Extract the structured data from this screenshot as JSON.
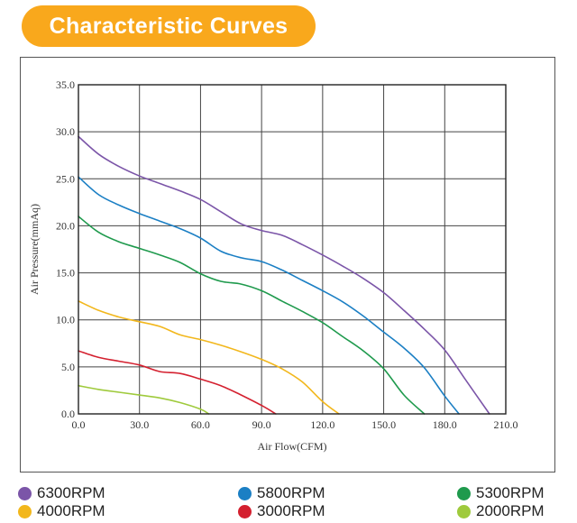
{
  "header": {
    "title": "Characteristic Curves"
  },
  "chart_data": {
    "type": "line",
    "title": "Characteristic Curves",
    "xlabel": "Air Flow(CFM)",
    "ylabel": "Air Pressure(mmAq)",
    "xlim": [
      0,
      210
    ],
    "ylim": [
      0,
      35
    ],
    "xticks": [
      0,
      30,
      60,
      90,
      120,
      150,
      180,
      210
    ],
    "yticks": [
      0,
      5,
      10,
      15,
      20,
      25,
      30,
      35
    ],
    "xtick_labels": [
      "0.0",
      "30.0",
      "60.0",
      "90.0",
      "120.0",
      "150.0",
      "180.0",
      "210.0"
    ],
    "ytick_labels": [
      "0.0",
      "5.0",
      "10.0",
      "15.0",
      "20.0",
      "25.0",
      "30.0",
      "35.0"
    ],
    "grid": true,
    "series": [
      {
        "name": "6300RPM",
        "color": "#7b55a8",
        "x": [
          0,
          10,
          20,
          30,
          40,
          50,
          60,
          70,
          80,
          90,
          100,
          110,
          120,
          130,
          140,
          150,
          160,
          170,
          180,
          190,
          202
        ],
        "y": [
          29.5,
          27.6,
          26.3,
          25.3,
          24.5,
          23.7,
          22.8,
          21.5,
          20.2,
          19.5,
          19.0,
          18.0,
          16.9,
          15.7,
          14.4,
          12.9,
          11.0,
          9.0,
          6.8,
          3.7,
          0
        ]
      },
      {
        "name": "5800RPM",
        "color": "#1b7fc4",
        "x": [
          0,
          10,
          20,
          30,
          40,
          50,
          60,
          70,
          80,
          90,
          100,
          110,
          120,
          130,
          140,
          150,
          160,
          170,
          180,
          187
        ],
        "y": [
          25.2,
          23.3,
          22.2,
          21.3,
          20.5,
          19.7,
          18.7,
          17.3,
          16.6,
          16.2,
          15.3,
          14.2,
          13.1,
          11.9,
          10.4,
          8.7,
          7.0,
          4.9,
          1.9,
          0
        ]
      },
      {
        "name": "5300RPM",
        "color": "#1f9a4d",
        "x": [
          0,
          10,
          20,
          30,
          40,
          50,
          60,
          70,
          80,
          90,
          100,
          110,
          120,
          130,
          140,
          150,
          160,
          170
        ],
        "y": [
          21.0,
          19.3,
          18.3,
          17.6,
          16.9,
          16.1,
          14.9,
          14.1,
          13.8,
          13.1,
          12.0,
          10.9,
          9.7,
          8.2,
          6.7,
          4.8,
          2.0,
          0
        ]
      },
      {
        "name": "4000RPM",
        "color": "#f2b71c",
        "x": [
          0,
          10,
          20,
          30,
          40,
          50,
          60,
          70,
          80,
          90,
          100,
          110,
          120,
          128
        ],
        "y": [
          12.0,
          11.0,
          10.3,
          9.8,
          9.3,
          8.4,
          7.9,
          7.3,
          6.6,
          5.8,
          4.8,
          3.4,
          1.3,
          0
        ]
      },
      {
        "name": "3000RPM",
        "color": "#d4202f",
        "x": [
          0,
          10,
          20,
          30,
          40,
          50,
          60,
          70,
          80,
          90,
          97
        ],
        "y": [
          6.7,
          6.0,
          5.6,
          5.2,
          4.5,
          4.3,
          3.7,
          3.0,
          2.0,
          0.9,
          0
        ]
      },
      {
        "name": "2000RPM",
        "color": "#9fca3c",
        "x": [
          0,
          10,
          20,
          30,
          40,
          50,
          60,
          64
        ],
        "y": [
          3.0,
          2.6,
          2.3,
          2.0,
          1.7,
          1.2,
          0.5,
          0
        ]
      }
    ]
  },
  "legend": {
    "items": [
      {
        "label": "6300RPM",
        "color": "#7b55a8"
      },
      {
        "label": "5800RPM",
        "color": "#1b7fc4"
      },
      {
        "label": "5300RPM",
        "color": "#1f9a4d"
      },
      {
        "label": "4000RPM",
        "color": "#f2b71c"
      },
      {
        "label": "3000RPM",
        "color": "#d4202f"
      },
      {
        "label": "2000RPM",
        "color": "#9fca3c"
      }
    ]
  }
}
